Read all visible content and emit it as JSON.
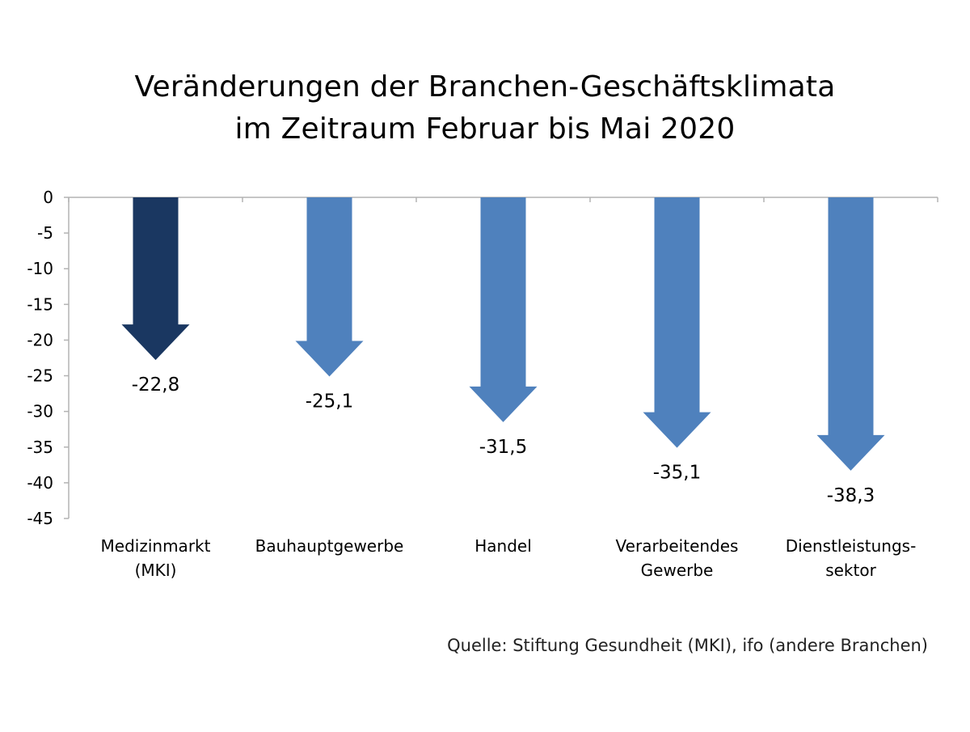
{
  "chart_data": {
    "type": "bar",
    "title_lines": [
      "Veränderungen der Branchen-Geschäftsklimata",
      "im Zeitraum Februar bis Mai 2020"
    ],
    "categories": [
      [
        "Medizinmarkt",
        "(MKI)"
      ],
      [
        "Bauhauptgewerbe"
      ],
      [
        "Handel"
      ],
      [
        "Verarbeitendes",
        "Gewerbe"
      ],
      [
        "Dienstleistungs-",
        "sektor"
      ]
    ],
    "values": [
      -22.8,
      -25.1,
      -31.5,
      -35.1,
      -38.3
    ],
    "value_labels": [
      "-22,8",
      "-25,1",
      "-31,5",
      "-35,1",
      "-38,3"
    ],
    "yticks": [
      0,
      -5,
      -10,
      -15,
      -20,
      -25,
      -30,
      -35,
      -40,
      -45
    ],
    "ylim": [
      -45,
      0
    ],
    "grid": false,
    "marker": "down-arrow",
    "colors": [
      "#1a3761",
      "#4f81bd",
      "#4f81bd",
      "#4f81bd",
      "#4f81bd"
    ],
    "axis_color": "#b3b3b3",
    "source": "Quelle: Stiftung Gesundheit (MKI), ifo (andere Branchen)"
  }
}
